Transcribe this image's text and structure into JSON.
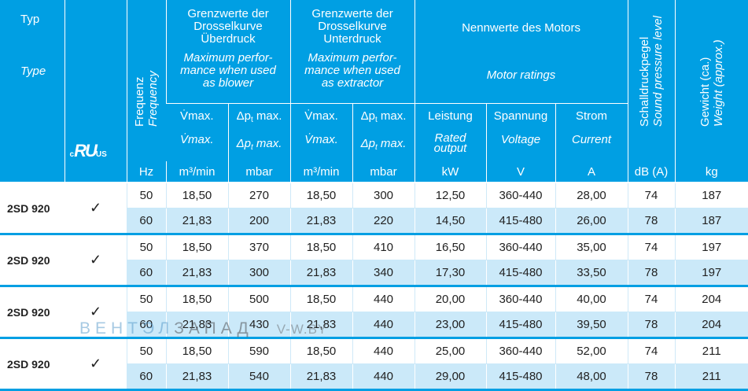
{
  "header": {
    "typ_de": "Typ",
    "typ_en": "Type",
    "freq_de": "Frequenz",
    "freq_en": "Frequency",
    "blower_de_1": "Grenzwerte der",
    "blower_de_2": "Drosselkurve",
    "blower_de_3": "Überdruck",
    "blower_en_1": "Maximum perfor-",
    "blower_en_2": "mance when used",
    "blower_en_3": "as blower",
    "extr_de_1": "Grenzwerte der",
    "extr_de_2": "Drosselkurve",
    "extr_de_3": "Unterdruck",
    "extr_en_1": "Maximum perfor-",
    "extr_en_2": "mance when used",
    "extr_en_3": "as extractor",
    "motor_de": "Nennwerte des Motors",
    "motor_en": "Motor ratings",
    "sound_de": "Schalldruckpegel",
    "sound_en": "Sound pressure level",
    "weight_de": "Gewicht (ca.)",
    "weight_en": "Weight (approx.)",
    "vmax_de": "V̇max.",
    "vmax_en": "V̇max.",
    "dp_de": "Δp",
    "dp_sub": "t",
    "dp_suffix": " max.",
    "leistung_de": "Leistung",
    "leistung_en_1": "Rated",
    "leistung_en_2": "output",
    "spannung_de": "Spannung",
    "spannung_en": "Voltage",
    "strom_de": "Strom",
    "strom_en": "Current",
    "cert_c": "c",
    "cert_ru": "RU",
    "cert_us": "US"
  },
  "units": [
    "Hz",
    "m³/min",
    "mbar",
    "m³/min",
    "mbar",
    "kW",
    "V",
    "A",
    "dB (A)",
    "kg"
  ],
  "groups": [
    {
      "type": "2SD 920",
      "check": "✓",
      "rows": [
        [
          "50",
          "18,50",
          "270",
          "18,50",
          "300",
          "12,50",
          "360-440",
          "28,00",
          "74",
          "187"
        ],
        [
          "60",
          "21,83",
          "200",
          "21,83",
          "220",
          "14,50",
          "415-480",
          "26,00",
          "78",
          "187"
        ]
      ]
    },
    {
      "type": "2SD 920",
      "check": "✓",
      "rows": [
        [
          "50",
          "18,50",
          "370",
          "18,50",
          "410",
          "16,50",
          "360-440",
          "35,00",
          "74",
          "197"
        ],
        [
          "60",
          "21,83",
          "300",
          "21,83",
          "340",
          "17,30",
          "415-480",
          "33,50",
          "78",
          "197"
        ]
      ]
    },
    {
      "type": "2SD 920",
      "check": "✓",
      "rows": [
        [
          "50",
          "18,50",
          "500",
          "18,50",
          "440",
          "20,00",
          "360-440",
          "40,00",
          "74",
          "204"
        ],
        [
          "60",
          "21,83",
          "430",
          "21,83",
          "440",
          "23,00",
          "415-480",
          "39,50",
          "78",
          "204"
        ]
      ]
    },
    {
      "type": "2SD 920",
      "check": "✓",
      "rows": [
        [
          "50",
          "18,50",
          "590",
          "18,50",
          "440",
          "25,00",
          "360-440",
          "52,00",
          "74",
          "211"
        ],
        [
          "60",
          "21,83",
          "540",
          "21,83",
          "440",
          "29,00",
          "415-480",
          "48,00",
          "78",
          "211"
        ]
      ]
    }
  ],
  "watermark": {
    "part1": "ВЕНТ",
    "part2": "ЭЛ",
    "part3": "ЗАПАД",
    "site": "V-W.BY"
  },
  "colors": {
    "header_bg": "#009fe3",
    "row_alt": "#cbe9f9",
    "divider": "#009fe3"
  }
}
